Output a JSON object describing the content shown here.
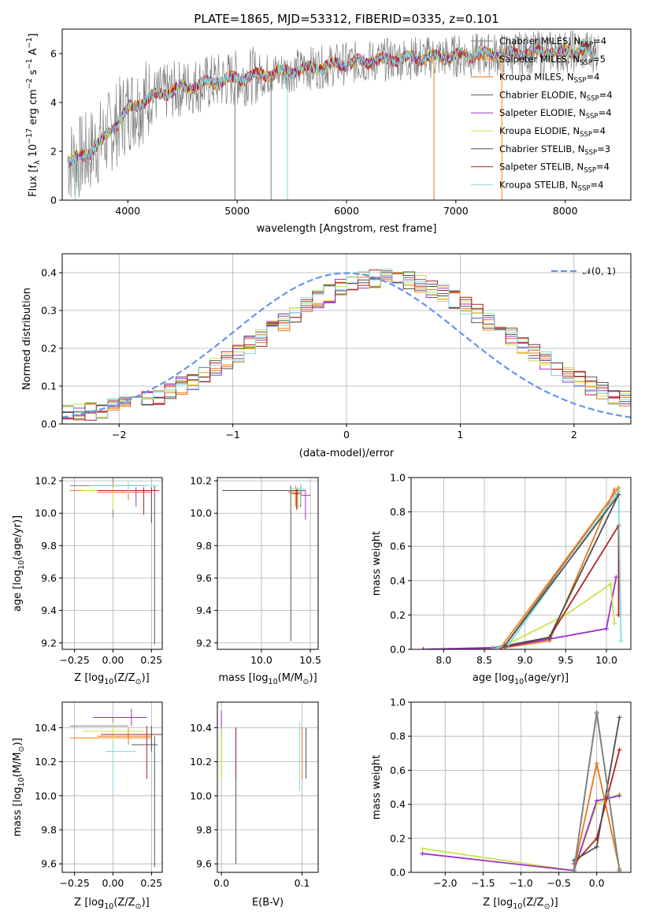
{
  "title": "PLATE=1865, MJD=53312, FIBERID=0335, z=0.101",
  "palette": [
    "#7f7f7f",
    "#ff7f0e",
    "#e6751a",
    "#555555",
    "#9932cc",
    "#c8e34d",
    "#4d4d4d",
    "#b22222",
    "#7fdbe0"
  ],
  "chart_data": [
    {
      "type": "line",
      "panel": "spectrum",
      "xlabel": "wavelength [Angstrom, rest frame]",
      "ylabel": "Flux [f_λ 10^-17 erg cm^-2 s^-1 A^-1]",
      "xlim": [
        3400,
        8600
      ],
      "ylim": [
        0,
        7
      ],
      "xticks": [
        "4000",
        "5000",
        "6000",
        "7000",
        "8000"
      ],
      "yticks": [
        "0",
        "2",
        "4",
        "6"
      ],
      "grid": false,
      "legend_position": "upper-right",
      "legend": [
        {
          "base": "Chabrier MILES, N",
          "sub": "SSP",
          "val": "=4"
        },
        {
          "base": "Salpeter MILES, N",
          "sub": "SSP",
          "val": "=5"
        },
        {
          "base": "Kroupa MILES, N",
          "sub": "SSP",
          "val": "=4"
        },
        {
          "base": "Chabrier ELODIE, N",
          "sub": "SSP",
          "val": "=4"
        },
        {
          "base": "Salpeter ELODIE, N",
          "sub": "SSP",
          "val": "=4"
        },
        {
          "base": "Kroupa ELODIE, N",
          "sub": "SSP",
          "val": "=4"
        },
        {
          "base": "Chabrier STELIB, N",
          "sub": "SSP",
          "val": "=3"
        },
        {
          "base": "Salpeter STELIB, N",
          "sub": "SSP",
          "val": "=4"
        },
        {
          "base": "Kroupa STELIB, N",
          "sub": "SSP",
          "val": "=4"
        }
      ],
      "continuum": {
        "x": [
          3450,
          3600,
          3800,
          4000,
          4200,
          4500,
          5000,
          5500,
          6000,
          6500,
          7000,
          7500,
          8000,
          8300
        ],
        "y": [
          1.6,
          1.8,
          2.6,
          3.7,
          4.2,
          4.6,
          5.0,
          5.3,
          5.6,
          5.8,
          5.9,
          6.0,
          6.1,
          6.1
        ]
      }
    },
    {
      "type": "histogram",
      "panel": "residuals",
      "xlabel": "(data-model)/error",
      "ylabel": "Normed distribution",
      "xlim": [
        -2.5,
        2.5
      ],
      "ylim": [
        0,
        0.45
      ],
      "xticks": [
        "−2",
        "−1",
        "0",
        "1",
        "2"
      ],
      "yticks": [
        "0.0",
        "0.1",
        "0.2",
        "0.3",
        "0.4"
      ],
      "grid": true,
      "legend_position": "upper-right",
      "reference_label": "𝒩(0, 1)",
      "bin_width": 0.1
    },
    {
      "type": "scatter",
      "panel": "age-vs-Z",
      "xlabel": "Z [log10(Z/Z⊙)]",
      "ylabel": "age [log10(age/yr)]",
      "xlim": [
        -0.33,
        0.32
      ],
      "ylim": [
        9.16,
        10.22
      ],
      "xticks": [
        "−0.25",
        "0.00",
        "0.25"
      ],
      "yticks": [
        "9.2",
        "9.4",
        "9.6",
        "9.8",
        "10.0",
        "10.2"
      ],
      "grid": true,
      "points": [
        {
          "x": 0.0,
          "y": 10.17,
          "xe": [
            0.28,
            0.22
          ],
          "ye": [
            0.2,
            0.05
          ],
          "c": 0
        },
        {
          "x": 0.0,
          "y": 10.14,
          "xe": [
            0.28,
            0.25
          ],
          "ye": [
            0.1,
            0.05
          ],
          "c": 1
        },
        {
          "x": 0.1,
          "y": 10.13,
          "xe": [
            0.2,
            0.15
          ],
          "ye": [
            0.05,
            0.03
          ],
          "c": 2
        },
        {
          "x": 0.27,
          "y": 10.14,
          "xe": [
            0.37,
            0.02
          ],
          "ye": [
            0.95,
            0.03
          ],
          "c": 3
        },
        {
          "x": 0.15,
          "y": 10.14,
          "xe": [
            0.25,
            0.1
          ],
          "ye": [
            0.1,
            0.02
          ],
          "c": 4
        },
        {
          "x": 0.0,
          "y": 10.14,
          "xe": [
            0.2,
            0.2
          ],
          "ye": [
            0.12,
            0.02
          ],
          "c": 5
        },
        {
          "x": 0.25,
          "y": 10.14,
          "xe": [
            0.35,
            0.05
          ],
          "ye": [
            0.2,
            0.02
          ],
          "c": 6
        },
        {
          "x": 0.2,
          "y": 10.14,
          "xe": [
            0.3,
            0.1
          ],
          "ye": [
            0.15,
            0.02
          ],
          "c": 7
        },
        {
          "x": 0.1,
          "y": 10.17,
          "xe": [
            0.25,
            0.2
          ],
          "ye": [
            0.05,
            0.03
          ],
          "c": 8
        }
      ]
    },
    {
      "type": "scatter",
      "panel": "age-vs-mass",
      "xlabel": "mass [log10(M/M⊙)]",
      "ylabel": "",
      "xlim": [
        9.55,
        10.58
      ],
      "ylim": [
        9.16,
        10.22
      ],
      "xticks": [
        "10.0",
        "10.5"
      ],
      "yticks": [
        "9.2",
        "9.4",
        "9.6",
        "9.8",
        "10.0",
        "10.2"
      ],
      "grid": true,
      "points": [
        {
          "x": 10.4,
          "y": 10.14,
          "xe": [
            0.1,
            0.05
          ],
          "ye": [
            0.1,
            0.03
          ],
          "c": 0
        },
        {
          "x": 10.35,
          "y": 10.14,
          "xe": [
            0.1,
            0.05
          ],
          "ye": [
            0.1,
            0.03
          ],
          "c": 1
        },
        {
          "x": 10.37,
          "y": 10.13,
          "xe": [
            0.1,
            0.05
          ],
          "ye": [
            0.1,
            0.03
          ],
          "c": 2
        },
        {
          "x": 10.3,
          "y": 10.14,
          "xe": [
            0.7,
            0.05
          ],
          "ye": [
            0.93,
            0.03
          ],
          "c": 3
        },
        {
          "x": 10.45,
          "y": 10.11,
          "xe": [
            0.05,
            0.05
          ],
          "ye": [
            0.15,
            0.03
          ],
          "c": 4
        },
        {
          "x": 10.4,
          "y": 10.14,
          "xe": [
            0.05,
            0.05
          ],
          "ye": [
            0.1,
            0.03
          ],
          "c": 5
        },
        {
          "x": 10.4,
          "y": 10.14,
          "xe": [
            0.1,
            0.05
          ],
          "ye": [
            0.1,
            0.03
          ],
          "c": 6
        },
        {
          "x": 10.36,
          "y": 10.12,
          "xe": [
            0.05,
            0.05
          ],
          "ye": [
            0.1,
            0.03
          ],
          "c": 7
        },
        {
          "x": 10.4,
          "y": 10.15,
          "xe": [
            0.1,
            0.05
          ],
          "ye": [
            0.1,
            0.03
          ],
          "c": 8
        }
      ]
    },
    {
      "type": "line",
      "panel": "massweight-vs-age",
      "xlabel": "age [log10(age/yr)]",
      "ylabel": "mass weight",
      "xlim": [
        7.6,
        10.3
      ],
      "ylim": [
        0,
        1
      ],
      "xticks": [
        "8.0",
        "8.5",
        "9.0",
        "9.5",
        "10.0"
      ],
      "yticks": [
        "0.0",
        "0.2",
        "0.4",
        "0.6",
        "0.8",
        "1.0"
      ],
      "grid": true,
      "series": [
        {
          "c": 0,
          "x": [
            7.75,
            8.6,
            8.75,
            10.15
          ],
          "y": [
            0.0,
            0.01,
            0.02,
            0.94
          ]
        },
        {
          "c": 1,
          "x": [
            7.75,
            8.7,
            10.15
          ],
          "y": [
            0.0,
            0.01,
            0.94
          ]
        },
        {
          "c": 2,
          "x": [
            8.0,
            8.75,
            9.3,
            10.1
          ],
          "y": [
            0.0,
            0.01,
            0.05,
            0.93
          ]
        },
        {
          "c": 4,
          "x": [
            7.75,
            8.7,
            9.3,
            10.0,
            10.12
          ],
          "y": [
            0.0,
            0.01,
            0.06,
            0.12,
            0.42
          ]
        },
        {
          "c": 5,
          "x": [
            8.7,
            9.5,
            10.05,
            10.1
          ],
          "y": [
            0.01,
            0.2,
            0.38,
            0.15
          ]
        },
        {
          "c": 7,
          "x": [
            8.7,
            9.3,
            10.15,
            10.15
          ],
          "y": [
            0.01,
            0.07,
            0.72,
            0.2
          ]
        },
        {
          "c": 6,
          "x": [
            8.75,
            9.3,
            10.15
          ],
          "y": [
            0.02,
            0.07,
            0.9
          ]
        },
        {
          "c": 8,
          "x": [
            8.6,
            8.8,
            10.15,
            10.18
          ],
          "y": [
            0.0,
            0.03,
            0.92,
            0.05
          ]
        },
        {
          "c": 3,
          "x": [
            8.75,
            10.15
          ],
          "y": [
            0.02,
            0.9
          ]
        }
      ]
    },
    {
      "type": "scatter",
      "panel": "mass-vs-Z",
      "xlabel": "Z [log10(Z/Z⊙)]",
      "ylabel": "mass [log10(M/M⊙)]",
      "xlim": [
        -0.33,
        0.32
      ],
      "ylim": [
        9.55,
        10.55
      ],
      "xticks": [
        "−0.25",
        "0.00",
        "0.25"
      ],
      "yticks": [
        "9.6",
        "9.8",
        "10.0",
        "10.2",
        "10.4"
      ],
      "grid": true,
      "points": [
        {
          "x": 0.0,
          "y": 10.41,
          "xe": [
            0.28,
            0.1
          ],
          "ye": [
            0.05,
            0.05
          ],
          "c": 0
        },
        {
          "x": 0.0,
          "y": 10.34,
          "xe": [
            0.28,
            0.25
          ],
          "ye": [
            0.05,
            0.05
          ],
          "c": 1
        },
        {
          "x": 0.1,
          "y": 10.35,
          "xe": [
            0.2,
            0.15
          ],
          "ye": [
            0.05,
            0.05
          ],
          "c": 2
        },
        {
          "x": 0.27,
          "y": 10.3,
          "xe": [
            0.15,
            0.02
          ],
          "ye": [
            0.72,
            0.05
          ],
          "c": 3
        },
        {
          "x": 0.12,
          "y": 10.46,
          "xe": [
            0.25,
            0.1
          ],
          "ye": [
            0.05,
            0.05
          ],
          "c": 4
        },
        {
          "x": 0.0,
          "y": 10.38,
          "xe": [
            0.2,
            0.2
          ],
          "ye": [
            0.25,
            0.05
          ],
          "c": 5
        },
        {
          "x": 0.25,
          "y": 10.36,
          "xe": [
            0.1,
            0.05
          ],
          "ye": [
            0.1,
            0.05
          ],
          "c": 6
        },
        {
          "x": 0.22,
          "y": 10.36,
          "xe": [
            0.3,
            0.1
          ],
          "ye": [
            0.26,
            0.05
          ],
          "c": 7
        },
        {
          "x": 0.0,
          "y": 10.26,
          "xe": [
            0.05,
            0.15
          ],
          "ye": [
            0.25,
            0.05
          ],
          "c": 8
        }
      ]
    },
    {
      "type": "scatter",
      "panel": "mass-vs-ebv",
      "xlabel": "E(B-V)",
      "ylabel": "",
      "xlim": [
        -0.005,
        0.12
      ],
      "ylim": [
        9.55,
        10.55
      ],
      "xticks": [
        "0.0",
        "0.1"
      ],
      "yticks": [
        "9.6",
        "9.8",
        "10.0",
        "10.2",
        "10.4"
      ],
      "grid": true,
      "points": [
        {
          "x": 0.1,
          "y": 10.3,
          "ye": [
            0.1,
            0.1
          ],
          "c": 0
        },
        {
          "x": 0.0,
          "y": 10.3,
          "ye": [
            0.2,
            0.1
          ],
          "c": 1
        },
        {
          "x": 0.1,
          "y": 10.3,
          "ye": [
            0.2,
            0.1
          ],
          "c": 2
        },
        {
          "x": 0.018,
          "y": 10.3,
          "ye": [
            0.7,
            0.1
          ],
          "c": 3
        },
        {
          "x": 0.0,
          "y": 10.45,
          "ye": [
            0.1,
            0.05
          ],
          "c": 4
        },
        {
          "x": 0.0,
          "y": 10.3,
          "ye": [
            0.2,
            0.1
          ],
          "c": 5
        },
        {
          "x": 0.105,
          "y": 10.3,
          "ye": [
            0.2,
            0.1
          ],
          "c": 6
        },
        {
          "x": 0.018,
          "y": 10.3,
          "ye": [
            0.2,
            0.1
          ],
          "c": 7
        },
        {
          "x": 0.097,
          "y": 10.23,
          "ye": [
            0.2,
            0.2
          ],
          "c": 8
        }
      ]
    },
    {
      "type": "line",
      "panel": "massweight-vs-Z",
      "xlabel": "Z [log10(Z/Z⊙)]",
      "ylabel": "mass weight",
      "xlim": [
        -2.45,
        0.45
      ],
      "ylim": [
        0,
        1
      ],
      "xticks": [
        "−2.0",
        "−1.5",
        "−1.0",
        "−0.5",
        "0.0"
      ],
      "yticks": [
        "0.0",
        "0.2",
        "0.4",
        "0.6",
        "0.8",
        "1.0"
      ],
      "grid": true,
      "series": [
        {
          "c": 5,
          "x": [
            -2.3,
            -0.3,
            0.0,
            0.3
          ],
          "y": [
            0.14,
            0.01,
            0.4,
            0.46
          ]
        },
        {
          "c": 4,
          "x": [
            -2.3,
            -0.3,
            0.0,
            0.3
          ],
          "y": [
            0.11,
            0.01,
            0.42,
            0.45
          ]
        },
        {
          "c": 7,
          "x": [
            -0.3,
            0.0,
            0.3
          ],
          "y": [
            0.05,
            0.2,
            0.72
          ]
        },
        {
          "c": 6,
          "x": [
            -0.3,
            0.0,
            0.3
          ],
          "y": [
            0.07,
            0.15,
            0.91
          ]
        },
        {
          "c": 1,
          "x": [
            -0.3,
            0.0,
            0.3
          ],
          "y": [
            0.02,
            0.94,
            0.01
          ]
        },
        {
          "c": 2,
          "x": [
            -0.3,
            0.0,
            0.3
          ],
          "y": [
            0.01,
            0.64,
            0.02
          ]
        },
        {
          "c": 8,
          "x": [
            -0.3,
            0.0,
            0.3
          ],
          "y": [
            0.02,
            0.93,
            0.01
          ]
        },
        {
          "c": 0,
          "x": [
            -0.3,
            0.0,
            0.3
          ],
          "y": [
            0.01,
            0.94,
            0.01
          ]
        }
      ]
    }
  ]
}
